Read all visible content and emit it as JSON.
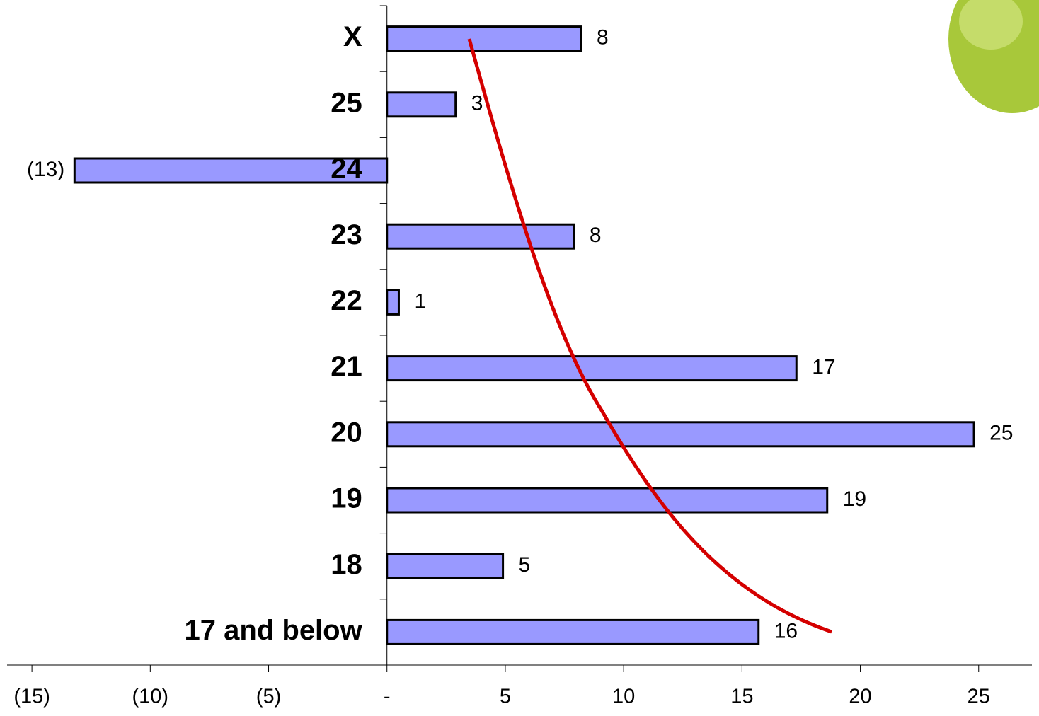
{
  "chart_data": {
    "type": "bar",
    "orientation": "horizontal",
    "categories": [
      "X",
      "25",
      "24",
      "23",
      "22",
      "21",
      "20",
      "19",
      "18",
      "17 and below"
    ],
    "values": [
      8.2,
      2.9,
      -13.2,
      7.9,
      0.5,
      17.3,
      24.8,
      18.6,
      4.9,
      15.7
    ],
    "value_labels": [
      "8",
      "3",
      "(13)",
      "8",
      "1",
      "17",
      "25",
      "19",
      "5",
      "16"
    ],
    "color": "#9999ff",
    "xlim": [
      -16.05,
      27.25
    ],
    "xticks": [
      {
        "value": -15,
        "label": "(15)"
      },
      {
        "value": -10,
        "label": "(10)"
      },
      {
        "value": -5,
        "label": "(5)"
      },
      {
        "value": 0,
        "label": "-"
      },
      5,
      10,
      15,
      20,
      25
    ]
  }
}
